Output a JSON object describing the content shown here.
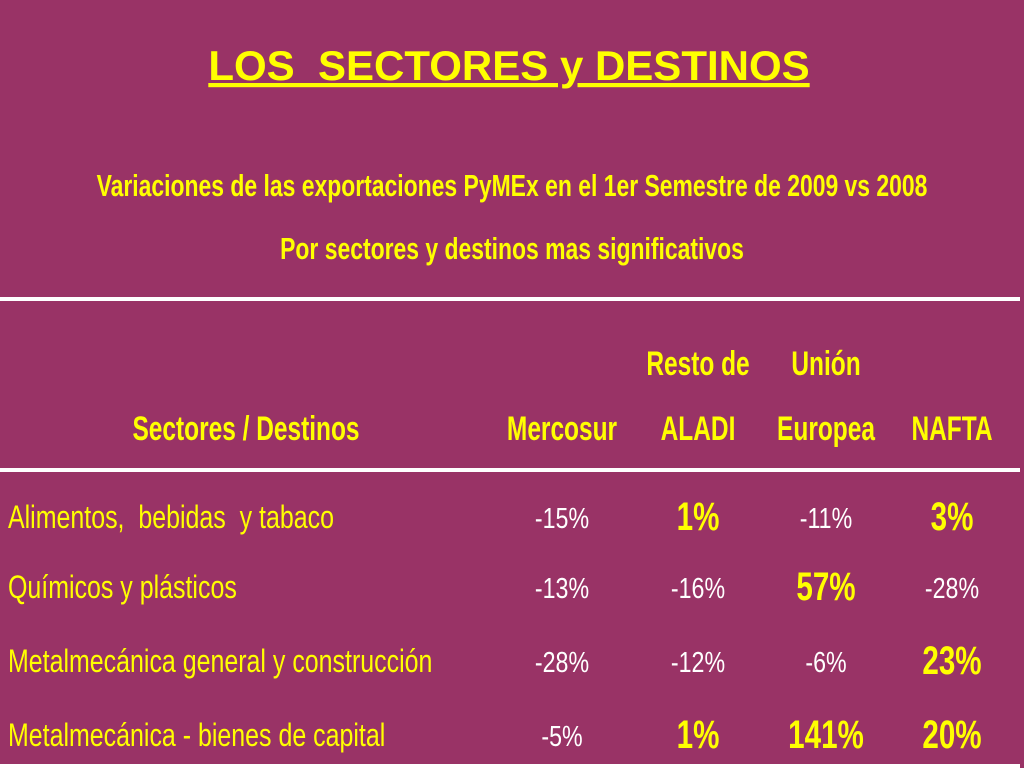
{
  "title": "LOS  SECTORES y DESTINOS",
  "subtitle": [
    "Variaciones de las exportaciones PyMEx en el 1er Semestre de 2009 vs 2008",
    "Por sectores y destinos mas significativos"
  ],
  "table": {
    "header": [
      [
        "Sectores / Destinos"
      ],
      [
        "Mercosur"
      ],
      [
        "Resto de",
        "ALADI"
      ],
      [
        "Unión",
        "Europea"
      ],
      [
        "NAFTA"
      ]
    ],
    "rows": [
      [
        "Alimentos,  bebidas  y tabaco",
        "-15%",
        "1%",
        "-11%",
        "3%"
      ],
      [
        "Químicos y plásticos",
        "-13%",
        "-16%",
        "57%",
        "-28%"
      ],
      [
        "Metalmecánica general y construcción",
        "-28%",
        "-12%",
        "-6%",
        "23%"
      ],
      [
        "Metalmecánica - bienes de capital",
        "-5%",
        "1%",
        "141%",
        "20%"
      ]
    ]
  }
}
